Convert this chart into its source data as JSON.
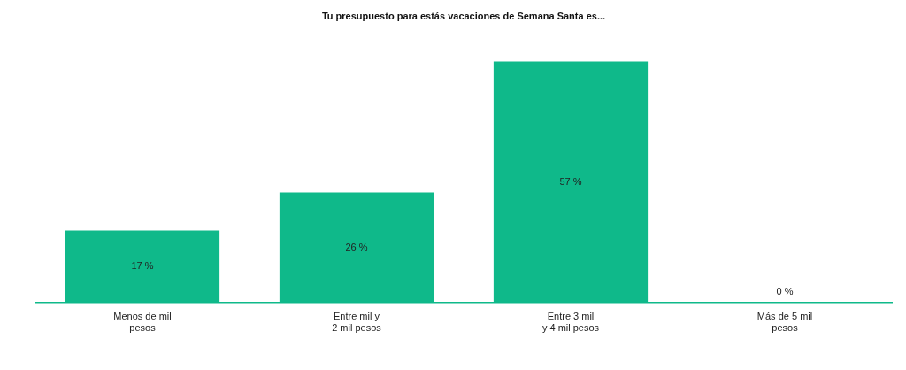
{
  "chart_data": {
    "type": "bar",
    "title": "Tu presupuesto para estás vacaciones de Semana Santa es...",
    "categories": [
      "Menos de mil pesos",
      "Entre mil y 2 mil pesos",
      "Entre 3 mil y 4 mil pesos",
      "Más de 5 mil pesos"
    ],
    "values": [
      17,
      26,
      57,
      0
    ],
    "value_labels": [
      "17 %",
      "26 %",
      "57 %",
      "0 %"
    ],
    "color": "#0fb98a",
    "grid": false,
    "legend": false
  }
}
